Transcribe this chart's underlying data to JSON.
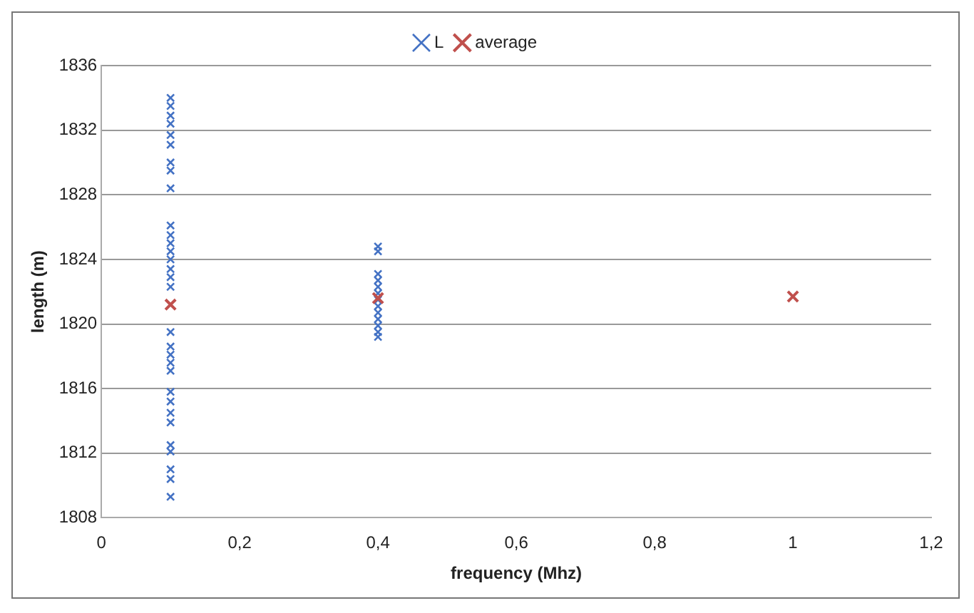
{
  "chart_data": {
    "type": "scatter",
    "xlabel": "frequency (Mhz)",
    "ylabel": "length (m)",
    "xlim": [
      0,
      1.2
    ],
    "xticks": [
      0,
      {
        "value": 0.2,
        "label": "0,2"
      },
      {
        "value": 0.4,
        "label": "0,4"
      },
      {
        "value": 0.6,
        "label": "0,6"
      },
      {
        "value": 0.8,
        "label": "0,8"
      },
      1,
      {
        "value": 1.2,
        "label": "1,2"
      }
    ],
    "ylim": [
      1808,
      1836
    ],
    "yticks": [
      1808,
      1812,
      1816,
      1820,
      1824,
      1828,
      1832,
      1836
    ],
    "grid": "y",
    "legend": "top",
    "series": [
      {
        "name": "L",
        "color": "#4472c4",
        "marker": "cross",
        "x": [
          0.1,
          0.1,
          0.1,
          0.1,
          0.1,
          0.1,
          0.1,
          0.1,
          0.1,
          0.1,
          0.1,
          0.1,
          0.1,
          0.1,
          0.1,
          0.1,
          0.1,
          0.1,
          0.1,
          0.1,
          0.1,
          0.1,
          0.1,
          0.1,
          0.1,
          0.1,
          0.1,
          0.1,
          0.1,
          0.1,
          0.1,
          0.4,
          0.4,
          0.4,
          0.4,
          0.4,
          0.4,
          0.4,
          0.4,
          0.4,
          0.4,
          0.4,
          0.4,
          0.4
        ],
        "values": [
          1834,
          1833.5,
          1832.9,
          1832.4,
          1831.7,
          1831.1,
          1830,
          1829.5,
          1828.4,
          1826.1,
          1825.5,
          1825,
          1824.5,
          1824,
          1823.4,
          1822.9,
          1822.3,
          1819.5,
          1818.6,
          1818.1,
          1817.6,
          1817.1,
          1815.8,
          1815.2,
          1814.5,
          1813.9,
          1812.5,
          1812.1,
          1811,
          1810.4,
          1809.3,
          1824.8,
          1824.5,
          1823.1,
          1822.7,
          1822.3,
          1821.9,
          1821.5,
          1821.1,
          1820.7,
          1820.3,
          1819.9,
          1819.5,
          1819.2
        ]
      },
      {
        "name": "average",
        "color": "#c0504d",
        "marker": "cross",
        "x": [
          0.1,
          0.4,
          1
        ],
        "values": [
          1821.2,
          1821.6,
          1821.7
        ]
      }
    ]
  }
}
